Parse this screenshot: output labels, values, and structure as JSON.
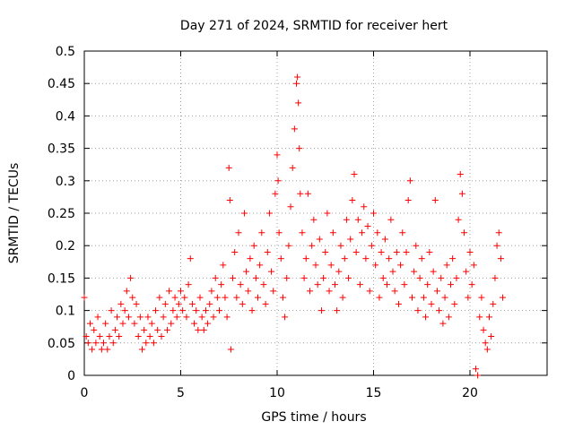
{
  "chart_data": {
    "type": "scatter",
    "title": "Day 271 of 2024, SRMTID for receiver hert",
    "xlabel": "GPS time / hours",
    "ylabel": "SRMTID / TECUs",
    "xlim": [
      0,
      24
    ],
    "ylim": [
      0,
      0.5
    ],
    "xticks": [
      "0",
      "5",
      "10",
      "15",
      "20"
    ],
    "yticks": [
      "0",
      "0.05",
      "0.1",
      "0.15",
      "0.2",
      "0.25",
      "0.3",
      "0.35",
      "0.4",
      "0.45",
      "0.5"
    ],
    "grid": true,
    "marker": "plus",
    "color": "#ff0000",
    "series": [
      {
        "points": [
          [
            0.0,
            0.12
          ],
          [
            0.1,
            0.06
          ],
          [
            0.2,
            0.05
          ],
          [
            0.3,
            0.08
          ],
          [
            0.4,
            0.04
          ],
          [
            0.5,
            0.07
          ],
          [
            0.6,
            0.05
          ],
          [
            0.7,
            0.09
          ],
          [
            0.8,
            0.06
          ],
          [
            0.9,
            0.04
          ],
          [
            1.0,
            0.05
          ],
          [
            1.1,
            0.08
          ],
          [
            1.2,
            0.04
          ],
          [
            1.3,
            0.06
          ],
          [
            1.4,
            0.1
          ],
          [
            1.5,
            0.05
          ],
          [
            1.6,
            0.07
          ],
          [
            1.7,
            0.09
          ],
          [
            1.8,
            0.06
          ],
          [
            1.9,
            0.11
          ],
          [
            2.0,
            0.08
          ],
          [
            2.1,
            0.1
          ],
          [
            2.2,
            0.13
          ],
          [
            2.3,
            0.09
          ],
          [
            2.4,
            0.15
          ],
          [
            2.5,
            0.12
          ],
          [
            2.6,
            0.08
          ],
          [
            2.7,
            0.11
          ],
          [
            2.8,
            0.06
          ],
          [
            2.9,
            0.09
          ],
          [
            3.0,
            0.04
          ],
          [
            3.1,
            0.07
          ],
          [
            3.2,
            0.05
          ],
          [
            3.3,
            0.09
          ],
          [
            3.4,
            0.06
          ],
          [
            3.5,
            0.08
          ],
          [
            3.6,
            0.05
          ],
          [
            3.7,
            0.1
          ],
          [
            3.8,
            0.07
          ],
          [
            3.9,
            0.12
          ],
          [
            4.0,
            0.06
          ],
          [
            4.1,
            0.09
          ],
          [
            4.2,
            0.11
          ],
          [
            4.3,
            0.07
          ],
          [
            4.4,
            0.13
          ],
          [
            4.5,
            0.08
          ],
          [
            4.6,
            0.1
          ],
          [
            4.7,
            0.12
          ],
          [
            4.8,
            0.09
          ],
          [
            4.9,
            0.11
          ],
          [
            5.0,
            0.13
          ],
          [
            5.1,
            0.1
          ],
          [
            5.2,
            0.12
          ],
          [
            5.3,
            0.09
          ],
          [
            5.4,
            0.14
          ],
          [
            5.5,
            0.18
          ],
          [
            5.6,
            0.11
          ],
          [
            5.7,
            0.08
          ],
          [
            5.8,
            0.1
          ],
          [
            5.9,
            0.07
          ],
          [
            6.0,
            0.12
          ],
          [
            6.1,
            0.09
          ],
          [
            6.2,
            0.07
          ],
          [
            6.3,
            0.1
          ],
          [
            6.4,
            0.08
          ],
          [
            6.5,
            0.11
          ],
          [
            6.6,
            0.13
          ],
          [
            6.7,
            0.09
          ],
          [
            6.8,
            0.15
          ],
          [
            6.9,
            0.12
          ],
          [
            7.0,
            0.1
          ],
          [
            7.1,
            0.14
          ],
          [
            7.2,
            0.17
          ],
          [
            7.3,
            0.12
          ],
          [
            7.4,
            0.09
          ],
          [
            7.5,
            0.32
          ],
          [
            7.55,
            0.27
          ],
          [
            7.6,
            0.04
          ],
          [
            7.7,
            0.15
          ],
          [
            7.8,
            0.19
          ],
          [
            7.9,
            0.12
          ],
          [
            8.0,
            0.22
          ],
          [
            8.1,
            0.14
          ],
          [
            8.2,
            0.11
          ],
          [
            8.3,
            0.25
          ],
          [
            8.4,
            0.16
          ],
          [
            8.5,
            0.13
          ],
          [
            8.6,
            0.18
          ],
          [
            8.7,
            0.1
          ],
          [
            8.8,
            0.2
          ],
          [
            8.9,
            0.15
          ],
          [
            9.0,
            0.12
          ],
          [
            9.1,
            0.17
          ],
          [
            9.2,
            0.22
          ],
          [
            9.3,
            0.14
          ],
          [
            9.4,
            0.11
          ],
          [
            9.5,
            0.19
          ],
          [
            9.6,
            0.25
          ],
          [
            9.7,
            0.16
          ],
          [
            9.8,
            0.13
          ],
          [
            9.9,
            0.28
          ],
          [
            10.0,
            0.34
          ],
          [
            10.05,
            0.3
          ],
          [
            10.1,
            0.22
          ],
          [
            10.2,
            0.18
          ],
          [
            10.3,
            0.12
          ],
          [
            10.4,
            0.09
          ],
          [
            10.5,
            0.15
          ],
          [
            10.6,
            0.2
          ],
          [
            10.7,
            0.26
          ],
          [
            10.8,
            0.32
          ],
          [
            10.9,
            0.38
          ],
          [
            11.0,
            0.45
          ],
          [
            11.05,
            0.46
          ],
          [
            11.1,
            0.42
          ],
          [
            11.15,
            0.35
          ],
          [
            11.2,
            0.28
          ],
          [
            11.3,
            0.22
          ],
          [
            11.4,
            0.15
          ],
          [
            11.5,
            0.18
          ],
          [
            11.6,
            0.28
          ],
          [
            11.7,
            0.13
          ],
          [
            11.8,
            0.2
          ],
          [
            11.9,
            0.24
          ],
          [
            12.0,
            0.17
          ],
          [
            12.1,
            0.14
          ],
          [
            12.2,
            0.21
          ],
          [
            12.3,
            0.1
          ],
          [
            12.4,
            0.15
          ],
          [
            12.5,
            0.19
          ],
          [
            12.6,
            0.25
          ],
          [
            12.7,
            0.13
          ],
          [
            12.8,
            0.17
          ],
          [
            12.9,
            0.22
          ],
          [
            13.0,
            0.14
          ],
          [
            13.1,
            0.1
          ],
          [
            13.2,
            0.16
          ],
          [
            13.3,
            0.2
          ],
          [
            13.4,
            0.12
          ],
          [
            13.5,
            0.18
          ],
          [
            13.6,
            0.24
          ],
          [
            13.7,
            0.15
          ],
          [
            13.8,
            0.21
          ],
          [
            13.9,
            0.27
          ],
          [
            14.0,
            0.31
          ],
          [
            14.1,
            0.19
          ],
          [
            14.2,
            0.24
          ],
          [
            14.3,
            0.14
          ],
          [
            14.4,
            0.22
          ],
          [
            14.5,
            0.26
          ],
          [
            14.6,
            0.18
          ],
          [
            14.7,
            0.23
          ],
          [
            14.8,
            0.13
          ],
          [
            14.9,
            0.2
          ],
          [
            15.0,
            0.25
          ],
          [
            15.1,
            0.17
          ],
          [
            15.2,
            0.22
          ],
          [
            15.3,
            0.12
          ],
          [
            15.4,
            0.19
          ],
          [
            15.5,
            0.15
          ],
          [
            15.6,
            0.21
          ],
          [
            15.7,
            0.14
          ],
          [
            15.8,
            0.18
          ],
          [
            15.9,
            0.24
          ],
          [
            16.0,
            0.16
          ],
          [
            16.1,
            0.13
          ],
          [
            16.2,
            0.19
          ],
          [
            16.3,
            0.11
          ],
          [
            16.4,
            0.17
          ],
          [
            16.5,
            0.22
          ],
          [
            16.6,
            0.14
          ],
          [
            16.7,
            0.19
          ],
          [
            16.8,
            0.27
          ],
          [
            16.9,
            0.3
          ],
          [
            17.0,
            0.12
          ],
          [
            17.1,
            0.16
          ],
          [
            17.2,
            0.2
          ],
          [
            17.3,
            0.1
          ],
          [
            17.4,
            0.15
          ],
          [
            17.5,
            0.18
          ],
          [
            17.6,
            0.12
          ],
          [
            17.7,
            0.09
          ],
          [
            17.8,
            0.14
          ],
          [
            17.9,
            0.19
          ],
          [
            18.0,
            0.11
          ],
          [
            18.1,
            0.16
          ],
          [
            18.2,
            0.27
          ],
          [
            18.3,
            0.13
          ],
          [
            18.4,
            0.1
          ],
          [
            18.5,
            0.15
          ],
          [
            18.6,
            0.08
          ],
          [
            18.7,
            0.12
          ],
          [
            18.8,
            0.17
          ],
          [
            18.9,
            0.09
          ],
          [
            19.0,
            0.14
          ],
          [
            19.1,
            0.18
          ],
          [
            19.2,
            0.11
          ],
          [
            19.3,
            0.15
          ],
          [
            19.4,
            0.24
          ],
          [
            19.5,
            0.31
          ],
          [
            19.6,
            0.28
          ],
          [
            19.7,
            0.22
          ],
          [
            19.8,
            0.16
          ],
          [
            19.9,
            0.12
          ],
          [
            20.0,
            0.19
          ],
          [
            20.1,
            0.14
          ],
          [
            20.2,
            0.17
          ],
          [
            20.3,
            0.01
          ],
          [
            20.4,
            0.0
          ],
          [
            20.5,
            0.09
          ],
          [
            20.6,
            0.12
          ],
          [
            20.7,
            0.07
          ],
          [
            20.8,
            0.05
          ],
          [
            20.9,
            0.04
          ],
          [
            21.0,
            0.09
          ],
          [
            21.1,
            0.06
          ],
          [
            21.2,
            0.11
          ],
          [
            21.3,
            0.15
          ],
          [
            21.4,
            0.2
          ],
          [
            21.5,
            0.22
          ],
          [
            21.6,
            0.18
          ],
          [
            21.7,
            0.12
          ]
        ]
      }
    ]
  }
}
